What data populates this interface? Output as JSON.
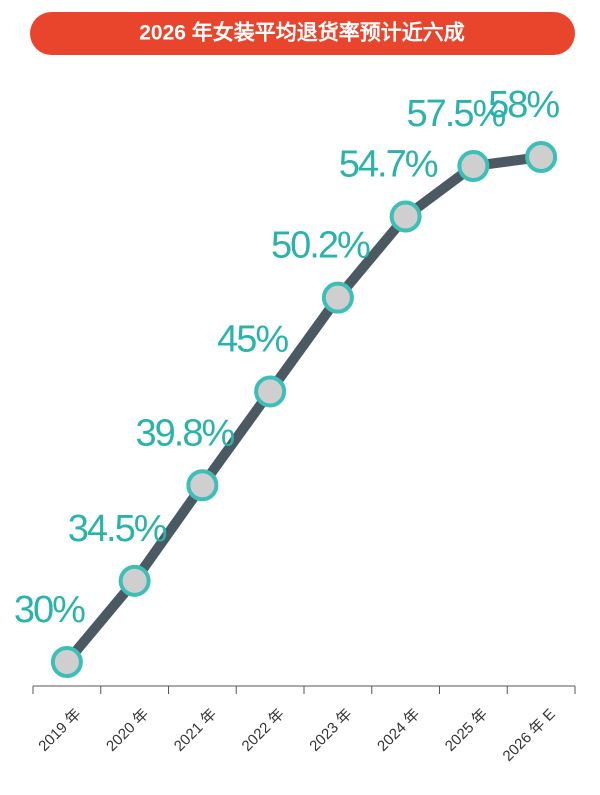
{
  "chart_data": {
    "type": "line",
    "title": "2026 年女装平均退货率预计近六成",
    "categories": [
      "2019 年",
      "2020 年",
      "2021 年",
      "2022 年",
      "2023 年",
      "2024 年",
      "2025 年",
      "2026 年 E"
    ],
    "values": [
      30,
      34.5,
      39.8,
      45,
      50.2,
      54.7,
      57.5,
      58
    ],
    "value_labels": [
      "30%",
      "34.5%",
      "39.8%",
      "45%",
      "50.2%",
      "54.7%",
      "57.5%",
      "58%"
    ],
    "color": "#4b5a62",
    "marker_fill": "#cfcfcf",
    "marker_edge": "#3dbfb8",
    "label_color": "#2bb3ab",
    "title_background": "#e9452d"
  }
}
